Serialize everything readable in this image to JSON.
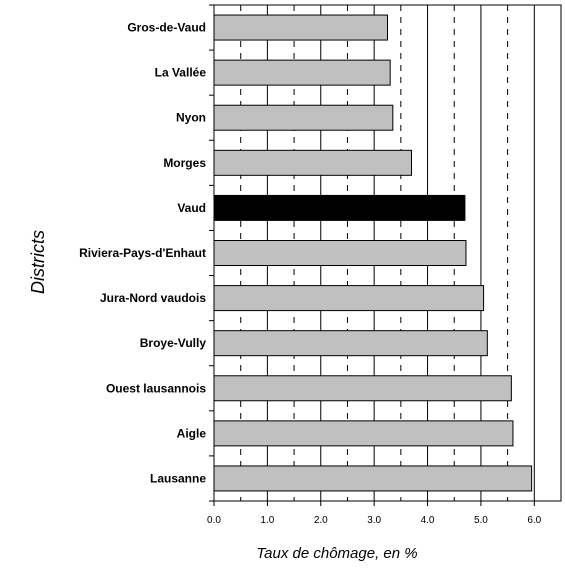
{
  "chart_data": {
    "type": "bar",
    "orientation": "horizontal",
    "title": "",
    "xlabel": "Taux de chômage, en %",
    "ylabel": "Districts",
    "xlim": [
      0,
      6.5
    ],
    "xticks": [
      "0.0",
      "1.0",
      "2.0",
      "3.0",
      "4.0",
      "5.0",
      "6.0"
    ],
    "grid": "vertical lines: solid at whole numbers, dashed at halves",
    "categories": [
      "Gros-de-Vaud",
      "La Vallée",
      "Nyon",
      "Morges",
      "Vaud",
      "Riviera-Pays-d'Enhaut",
      "Jura-Nord vaudois",
      "Broye-Vully",
      "Ouest lausannois",
      "Aigle",
      "Lausanne"
    ],
    "values": [
      3.25,
      3.3,
      3.35,
      3.7,
      4.7,
      4.72,
      5.05,
      5.12,
      5.57,
      5.6,
      5.95
    ],
    "highlight": "Vaud",
    "colors": {
      "bar": "#c0c0c0",
      "highlight": "#000000",
      "grid": "#000000"
    }
  }
}
